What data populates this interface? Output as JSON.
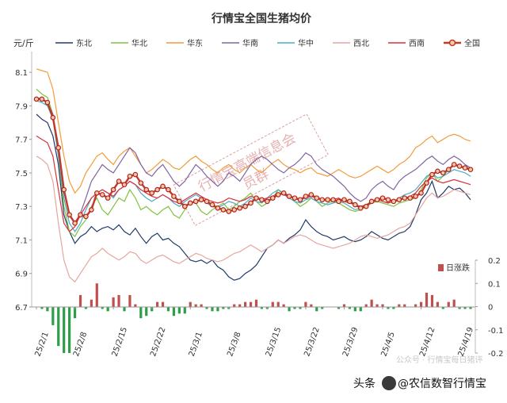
{
  "chart_data": {
    "type": "line",
    "title": "行情宝全国生猪均价",
    "ylabel": "元/斤",
    "ylim": [
      6.7,
      8.2
    ],
    "yticks": [
      6.7,
      6.9,
      7.1,
      7.3,
      7.5,
      7.7,
      7.9,
      8.1
    ],
    "y2lim": [
      -0.2,
      0.2
    ],
    "y2ticks": [
      -0.2,
      -0.1,
      0,
      0.1,
      0.2
    ],
    "x_tick_labels": [
      "25/2/1",
      "25/2/8",
      "25/2/15",
      "25/2/22",
      "25/3/1",
      "25/3/8",
      "25/3/15",
      "25/3/22",
      "25/3/29",
      "25/4/5",
      "25/4/12",
      "25/4/19"
    ],
    "legend_position": "top",
    "grid": false,
    "series": [
      {
        "name": "东北",
        "color": "#1f3a68",
        "values": [
          7.85,
          7.82,
          7.8,
          7.72,
          7.55,
          7.25,
          7.15,
          7.08,
          7.12,
          7.14,
          7.18,
          7.15,
          7.17,
          7.18,
          7.16,
          7.19,
          7.15,
          7.13,
          7.17,
          7.12,
          7.08,
          7.12,
          7.14,
          7.1,
          7.11,
          7.08,
          7.06,
          7.02,
          6.98,
          6.97,
          6.98,
          6.96,
          6.98,
          6.94,
          6.92,
          6.88,
          6.86,
          6.87,
          6.9,
          6.92,
          6.95,
          7.0,
          7.05,
          7.07,
          7.1,
          7.08,
          7.11,
          7.13,
          7.16,
          7.22,
          7.18,
          7.15,
          7.13,
          7.12,
          7.1,
          7.11,
          7.12,
          7.1,
          7.09,
          7.1,
          7.12,
          7.15,
          7.13,
          7.11,
          7.1,
          7.12,
          7.14,
          7.15,
          7.18,
          7.25,
          7.34,
          7.38,
          7.45,
          7.35,
          7.38,
          7.42,
          7.4,
          7.41,
          7.38,
          7.34
        ]
      },
      {
        "name": "华北",
        "color": "#7fc241",
        "values": [
          8.0,
          7.97,
          7.95,
          7.85,
          7.6,
          7.3,
          7.15,
          7.12,
          7.18,
          7.22,
          7.3,
          7.35,
          7.28,
          7.25,
          7.3,
          7.35,
          7.33,
          7.4,
          7.35,
          7.28,
          7.3,
          7.27,
          7.25,
          7.28,
          7.3,
          7.25,
          7.23,
          7.28,
          7.33,
          7.32,
          7.27,
          7.25,
          7.28,
          7.3,
          7.32,
          7.28,
          7.3,
          7.33,
          7.35,
          7.38,
          7.33,
          7.3,
          7.32,
          7.35,
          7.4,
          7.38,
          7.35,
          7.33,
          7.3,
          7.32,
          7.35,
          7.33,
          7.3,
          7.32,
          7.33,
          7.32,
          7.3,
          7.28,
          7.27,
          7.28,
          7.3,
          7.32,
          7.33,
          7.32,
          7.31,
          7.3,
          7.32,
          7.33,
          7.34,
          7.35,
          7.4,
          7.47,
          7.5,
          7.45,
          7.48,
          7.52,
          7.55,
          7.53,
          7.54,
          7.52
        ]
      },
      {
        "name": "华东",
        "color": "#f39c3a",
        "values": [
          8.12,
          8.11,
          8.1,
          8.0,
          7.8,
          7.6,
          7.45,
          7.38,
          7.42,
          7.5,
          7.55,
          7.6,
          7.62,
          7.58,
          7.55,
          7.6,
          7.63,
          7.65,
          7.6,
          7.55,
          7.5,
          7.52,
          7.55,
          7.58,
          7.56,
          7.53,
          7.52,
          7.55,
          7.58,
          7.6,
          7.57,
          7.55,
          7.52,
          7.5,
          7.53,
          7.55,
          7.52,
          7.5,
          7.53,
          7.55,
          7.52,
          7.5,
          7.53,
          7.56,
          7.58,
          7.55,
          7.53,
          7.52,
          7.5,
          7.52,
          7.53,
          7.5,
          7.49,
          7.48,
          7.5,
          7.52,
          7.5,
          7.48,
          7.47,
          7.48,
          7.5,
          7.52,
          7.54,
          7.52,
          7.5,
          7.52,
          7.55,
          7.57,
          7.6,
          7.65,
          7.67,
          7.7,
          7.72,
          7.68,
          7.7,
          7.72,
          7.73,
          7.72,
          7.7,
          7.69
        ]
      },
      {
        "name": "华南",
        "color": "#8064a2",
        "values": [
          7.95,
          7.94,
          7.92,
          7.85,
          7.65,
          7.4,
          7.25,
          7.2,
          7.26,
          7.35,
          7.45,
          7.5,
          7.55,
          7.52,
          7.5,
          7.55,
          7.6,
          7.65,
          7.62,
          7.55,
          7.5,
          7.48,
          7.52,
          7.55,
          7.5,
          7.45,
          7.42,
          7.45,
          7.5,
          7.55,
          7.52,
          7.48,
          7.45,
          7.42,
          7.45,
          7.5,
          7.48,
          7.45,
          7.5,
          7.55,
          7.58,
          7.6,
          7.58,
          7.55,
          7.52,
          7.5,
          7.53,
          7.55,
          7.58,
          7.62,
          7.6,
          7.55,
          7.52,
          7.5,
          7.48,
          7.45,
          7.42,
          7.38,
          7.35,
          7.33,
          7.35,
          7.4,
          7.43,
          7.45,
          7.42,
          7.4,
          7.45,
          7.48,
          7.5,
          7.52,
          7.55,
          7.58,
          7.6,
          7.57,
          7.55,
          7.58,
          7.6,
          7.58,
          7.55,
          7.53
        ]
      },
      {
        "name": "华中",
        "color": "#4bacc6",
        "values": [
          7.93,
          7.92,
          7.9,
          7.82,
          7.6,
          7.35,
          7.2,
          7.15,
          7.2,
          7.28,
          7.35,
          7.38,
          7.4,
          7.38,
          7.35,
          7.4,
          7.42,
          7.45,
          7.43,
          7.38,
          7.35,
          7.33,
          7.35,
          7.37,
          7.35,
          7.32,
          7.3,
          7.33,
          7.35,
          7.37,
          7.35,
          7.32,
          7.3,
          7.29,
          7.31,
          7.33,
          7.32,
          7.3,
          7.32,
          7.35,
          7.33,
          7.32,
          7.35,
          7.38,
          7.4,
          7.37,
          7.35,
          7.33,
          7.32,
          7.34,
          7.35,
          7.33,
          7.32,
          7.31,
          7.32,
          7.33,
          7.32,
          7.3,
          7.28,
          7.29,
          7.3,
          7.32,
          7.34,
          7.33,
          7.32,
          7.33,
          7.35,
          7.37,
          7.38,
          7.4,
          7.44,
          7.48,
          7.5,
          7.47,
          7.48,
          7.5,
          7.52,
          7.51,
          7.5,
          7.48
        ]
      },
      {
        "name": "西北",
        "color": "#e6a6a0",
        "values": [
          7.6,
          7.58,
          7.55,
          7.45,
          7.2,
          6.98,
          6.88,
          6.85,
          6.9,
          6.95,
          7.0,
          7.02,
          7.05,
          7.02,
          7.0,
          6.98,
          7.0,
          7.03,
          7.02,
          6.98,
          6.96,
          6.98,
          7.0,
          7.01,
          6.99,
          6.97,
          6.96,
          6.98,
          7.0,
          7.02,
          7.01,
          6.99,
          6.98,
          6.97,
          6.98,
          7.0,
          7.02,
          7.03,
          7.05,
          7.07,
          7.05,
          7.03,
          7.05,
          7.07,
          7.1,
          7.08,
          7.1,
          7.12,
          7.13,
          7.12,
          7.1,
          7.08,
          7.07,
          7.06,
          7.05,
          7.06,
          7.07,
          7.08,
          7.1,
          7.12,
          7.13,
          7.12,
          7.11,
          7.12,
          7.13,
          7.15,
          7.17,
          7.18,
          7.2,
          7.25,
          7.3,
          7.35,
          7.38,
          7.35,
          7.36,
          7.38,
          7.4,
          7.39,
          7.38,
          7.37
        ]
      },
      {
        "name": "西南",
        "color": "#d9303a",
        "values": [
          7.72,
          7.7,
          7.68,
          7.6,
          7.4,
          7.2,
          7.15,
          7.18,
          7.25,
          7.3,
          7.35,
          7.38,
          7.4,
          7.38,
          7.36,
          7.4,
          7.42,
          7.45,
          7.43,
          7.4,
          7.38,
          7.36,
          7.35,
          7.37,
          7.35,
          7.33,
          7.32,
          7.34,
          7.36,
          7.38,
          7.36,
          7.34,
          7.33,
          7.32,
          7.33,
          7.35,
          7.34,
          7.33,
          7.34,
          7.36,
          7.35,
          7.34,
          7.35,
          7.36,
          7.38,
          7.37,
          7.36,
          7.35,
          7.34,
          7.35,
          7.36,
          7.35,
          7.34,
          7.33,
          7.34,
          7.35,
          7.33,
          7.32,
          7.31,
          7.3,
          7.31,
          7.33,
          7.34,
          7.33,
          7.32,
          7.33,
          7.34,
          7.35,
          7.36,
          7.38,
          7.42,
          7.45,
          7.47,
          7.45,
          7.44,
          7.45,
          7.46,
          7.45,
          7.44,
          7.43
        ]
      },
      {
        "name": "全国",
        "color": "#c0392b",
        "marker": true,
        "bold": true,
        "values": [
          7.94,
          7.94,
          7.92,
          7.83,
          7.65,
          7.4,
          7.25,
          7.2,
          7.25,
          7.24,
          7.28,
          7.38,
          7.37,
          7.35,
          7.4,
          7.45,
          7.43,
          7.48,
          7.49,
          7.44,
          7.4,
          7.38,
          7.4,
          7.42,
          7.4,
          7.36,
          7.33,
          7.3,
          7.32,
          7.33,
          7.34,
          7.33,
          7.31,
          7.29,
          7.28,
          7.27,
          7.28,
          7.29,
          7.3,
          7.32,
          7.35,
          7.34,
          7.33,
          7.35,
          7.37,
          7.38,
          7.36,
          7.35,
          7.34,
          7.36,
          7.37,
          7.35,
          7.34,
          7.34,
          7.34,
          7.33,
          7.34,
          7.33,
          7.31,
          7.29,
          7.3,
          7.33,
          7.34,
          7.35,
          7.34,
          7.33,
          7.34,
          7.35,
          7.35,
          7.36,
          7.38,
          7.44,
          7.49,
          7.51,
          7.5,
          7.52,
          7.55,
          7.54,
          7.53,
          7.52
        ]
      }
    ],
    "bar_series": {
      "name": "日涨跌",
      "axis": "right",
      "values": [
        0,
        -0.01,
        -0.02,
        -0.08,
        -0.17,
        -0.2,
        -0.2,
        -0.05,
        0.05,
        -0.01,
        0.03,
        0.1,
        -0.01,
        -0.02,
        0.04,
        0.05,
        -0.02,
        0.05,
        0.01,
        -0.05,
        -0.04,
        -0.02,
        0.02,
        0.02,
        -0.02,
        -0.04,
        -0.03,
        -0.03,
        0.02,
        0.01,
        0.01,
        -0.01,
        -0.02,
        -0.02,
        -0.01,
        -0.01,
        0.01,
        0.01,
        0.02,
        0.02,
        0.03,
        -0.01,
        -0.01,
        0.02,
        0.02,
        0.01,
        -0.02,
        -0.01,
        -0.01,
        0.02,
        0.01,
        -0.02,
        -0.01,
        0,
        0,
        -0.01,
        0.01,
        -0.01,
        -0.02,
        -0.02,
        0.01,
        0.03,
        0.01,
        0.01,
        -0.01,
        -0.01,
        0.01,
        0.01,
        0,
        0.01,
        0.02,
        0.06,
        0.05,
        0.02,
        -0.01,
        0.02,
        0.03,
        -0.01,
        -0.01,
        -0.01
      ],
      "positive_color": "#c0504d",
      "negative_color": "#2e9e48"
    }
  },
  "watermark": {
    "line1": "行情宝高端信息会",
    "line2": "员群"
  },
  "footer_credit": {
    "left": "头条",
    "main": "@农信数智行情宝",
    "faded": "公众号 · 行情宝每日猪评"
  }
}
